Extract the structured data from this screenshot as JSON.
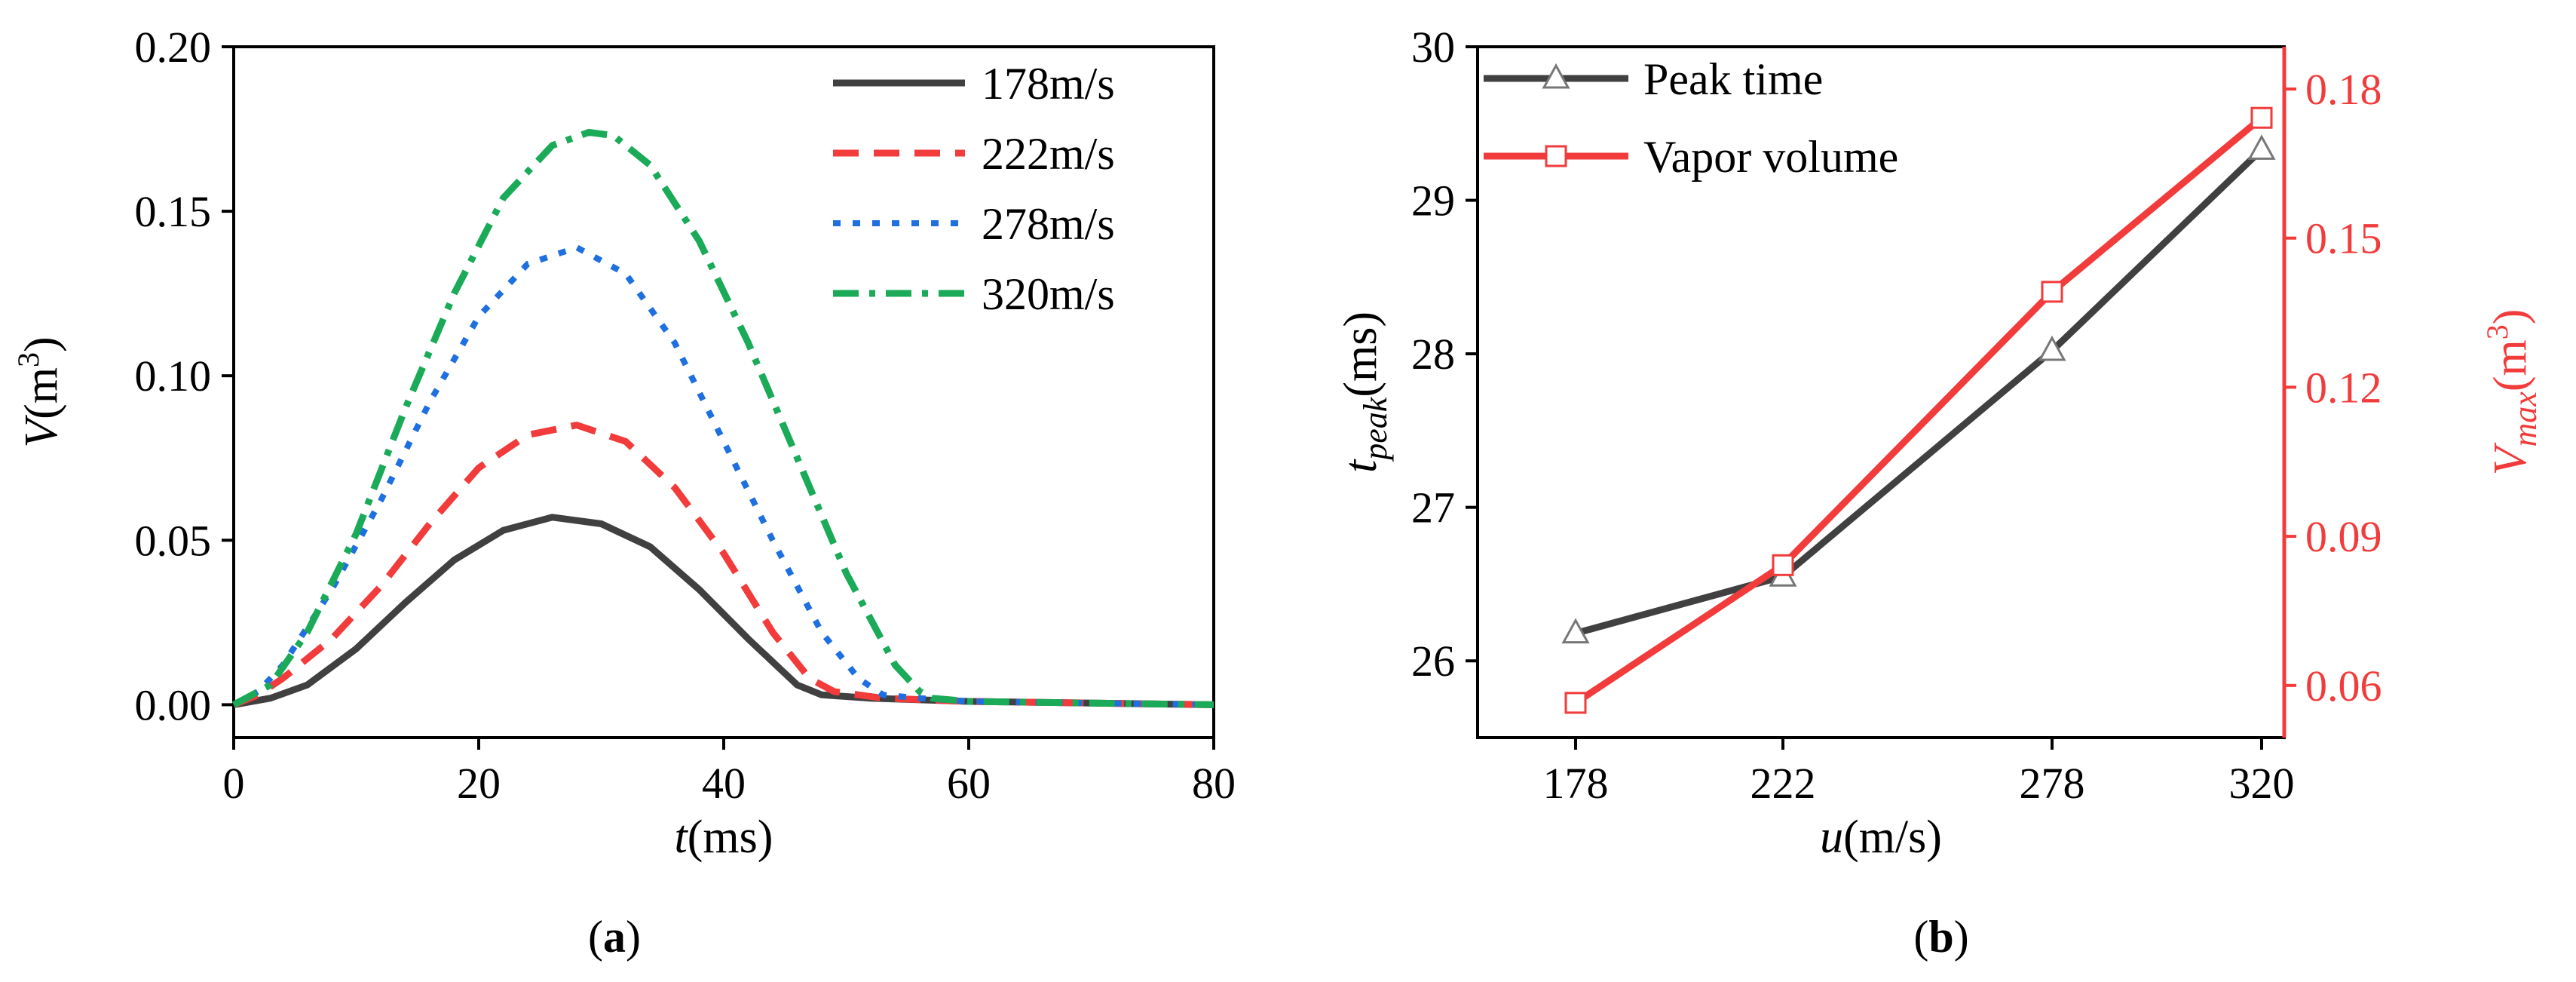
{
  "chart_data": [
    {
      "panel": "a",
      "caption": {
        "open": "(",
        "letter": "a",
        "close": ")"
      },
      "type": "line",
      "xlabel": {
        "var": "t",
        "unit": "(ms)"
      },
      "ylabel": {
        "var": "V",
        "unit": "(m",
        "sup": "3",
        "close": ")"
      },
      "xlim": [
        0,
        80
      ],
      "ylim": [
        -0.01,
        0.2
      ],
      "xticks": [
        0,
        20,
        40,
        60,
        80
      ],
      "xtick_labels": [
        "0",
        "20",
        "40",
        "60",
        "80"
      ],
      "yticks": [
        0.0,
        0.05,
        0.1,
        0.15,
        0.2
      ],
      "ytick_labels": [
        "0.00",
        "0.05",
        "0.10",
        "0.15",
        "0.20"
      ],
      "legend_position": "top-right",
      "series": [
        {
          "name": "178m/s",
          "color": "#404040",
          "style": "solid",
          "x": [
            0,
            3,
            6,
            10,
            14,
            18,
            22,
            26,
            30,
            34,
            38,
            42,
            46,
            48,
            52,
            60,
            80
          ],
          "y": [
            0.0,
            0.002,
            0.006,
            0.017,
            0.031,
            0.044,
            0.053,
            0.057,
            0.055,
            0.048,
            0.035,
            0.02,
            0.006,
            0.003,
            0.002,
            0.001,
            0.0
          ]
        },
        {
          "name": "222m/s",
          "color": "#f23b3b",
          "style": "dashed",
          "x": [
            0,
            2,
            4,
            8,
            12,
            16,
            20,
            24,
            28,
            32,
            36,
            40,
            44,
            47,
            49,
            53,
            60,
            80
          ],
          "y": [
            0.0,
            0.003,
            0.008,
            0.02,
            0.036,
            0.055,
            0.072,
            0.082,
            0.085,
            0.08,
            0.066,
            0.046,
            0.022,
            0.008,
            0.004,
            0.002,
            0.001,
            0.0
          ]
        },
        {
          "name": "278m/s",
          "color": "#1e6fe0",
          "style": "dotted",
          "x": [
            0,
            2,
            4,
            8,
            12,
            16,
            20,
            24,
            28,
            32,
            36,
            40,
            44,
            48,
            51,
            53,
            56,
            60,
            80
          ],
          "y": [
            0.0,
            0.004,
            0.012,
            0.035,
            0.062,
            0.092,
            0.118,
            0.134,
            0.139,
            0.131,
            0.11,
            0.08,
            0.05,
            0.022,
            0.008,
            0.003,
            0.002,
            0.001,
            0.0
          ]
        },
        {
          "name": "320m/s",
          "color": "#1aaa58",
          "style": "dashdot",
          "x": [
            0,
            3,
            6,
            10,
            14,
            18,
            22,
            26,
            29,
            31,
            34,
            38,
            42,
            46,
            50,
            54,
            56,
            57,
            60,
            80
          ],
          "y": [
            0.0,
            0.006,
            0.022,
            0.052,
            0.09,
            0.125,
            0.154,
            0.17,
            0.174,
            0.173,
            0.164,
            0.141,
            0.11,
            0.075,
            0.04,
            0.012,
            0.004,
            0.002,
            0.001,
            0.0
          ]
        }
      ]
    },
    {
      "panel": "b",
      "caption": {
        "open": "(",
        "letter": "b",
        "close": ")"
      },
      "type": "line",
      "categories": [
        "178",
        "222",
        "278",
        "320"
      ],
      "xlabel": {
        "var": "u",
        "unit": "(m/s)"
      },
      "ylabel_left": {
        "var": "t",
        "sub": "peak",
        "unit": "(ms)"
      },
      "ylabel_right": {
        "var": "V",
        "sub": "max",
        "unit": "(m",
        "sup": "3",
        "close": ")"
      },
      "ylim_left": [
        25.5,
        30
      ],
      "ylim_right": [
        0.0495,
        0.1885
      ],
      "yticks_left": [
        26,
        27,
        28,
        29,
        30
      ],
      "ytick_labels_left": [
        "26",
        "27",
        "28",
        "29",
        "30"
      ],
      "yticks_right": [
        0.06,
        0.09,
        0.12,
        0.15,
        0.18
      ],
      "ytick_labels_right": [
        "0.06",
        "0.09",
        "0.12",
        "0.15",
        "0.18"
      ],
      "right_axis_color": "#f23b3b",
      "legend_position": "top-left",
      "series": [
        {
          "name": "Peak time",
          "axis": "left",
          "color": "#404040",
          "marker": "triangle",
          "values": [
            26.18,
            26.55,
            28.02,
            29.33
          ]
        },
        {
          "name": "Vapor volume",
          "axis": "right",
          "color": "#f23b3b",
          "marker": "square",
          "values": [
            0.0565,
            0.0842,
            0.1392,
            0.1742
          ]
        }
      ]
    }
  ]
}
